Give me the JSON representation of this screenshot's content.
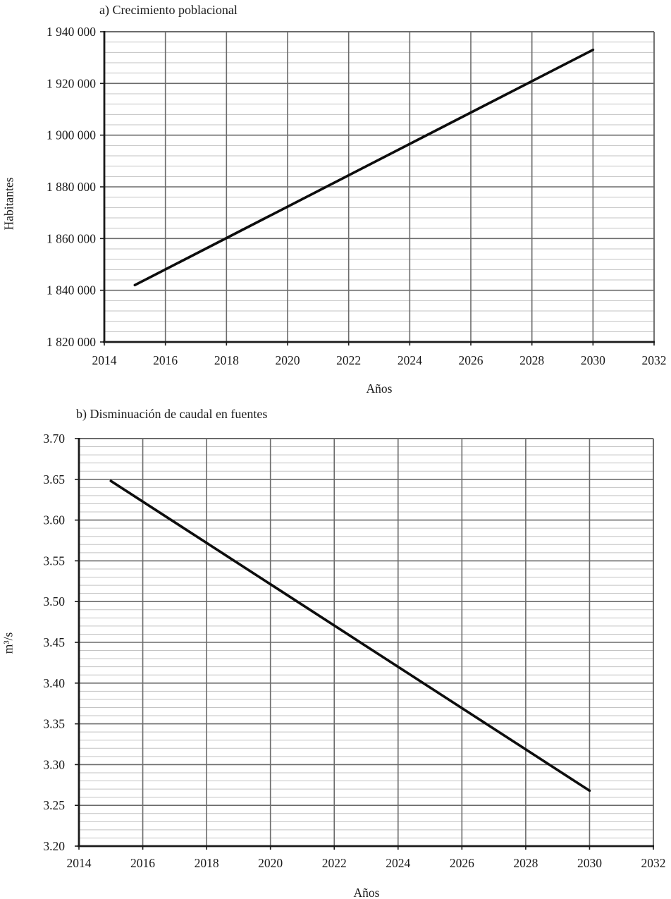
{
  "figure": {
    "background": "#ffffff",
    "text_color": "#1a1a1a"
  },
  "style": {
    "axis_color": "#1a1a1a",
    "major_grid_color": "#6b6b6b",
    "minor_grid_color": "#c3c3c3",
    "line_color": "#0d0d0d"
  },
  "chart_data": [
    {
      "type": "line",
      "panel_label": "a)",
      "title": "a) Crecimiento poblacional",
      "xlabel": "Años",
      "ylabel": "Habitantes",
      "xlim": [
        2014,
        2032
      ],
      "ylim": [
        1820000,
        1940000
      ],
      "x_major_step": 2,
      "y_major_step": 20000,
      "y_minor_step": 4000,
      "x_tick_labels": [
        "2014",
        "2016",
        "2018",
        "2020",
        "2022",
        "2024",
        "2026",
        "2028",
        "2030",
        "2032"
      ],
      "y_tick_labels": [
        "1 940 000",
        "1 920 000",
        "1 900 000",
        "1 880 000",
        "1 860 000",
        "1 840 000",
        "1 820 000"
      ],
      "grid": {
        "horizontal": "major+minor",
        "vertical": "major"
      },
      "legend": "none",
      "series": [
        {
          "name": "Crecimiento poblacional",
          "color": "#0d0d0d",
          "x": [
            2015,
            2030
          ],
          "y": [
            1842000,
            1933000
          ]
        }
      ]
    },
    {
      "type": "line",
      "panel_label": "b)",
      "title": "b) Disminuación de caudal en fuentes",
      "xlabel": "Años",
      "ylabel": "m³/s",
      "xlim": [
        2014,
        2032
      ],
      "ylim": [
        3.2,
        3.7
      ],
      "x_major_step": 2,
      "y_major_step": 0.05,
      "y_minor_step": 0.01,
      "x_tick_labels": [
        "2014",
        "2016",
        "2018",
        "2020",
        "2022",
        "2024",
        "2026",
        "2028",
        "2030",
        "2032"
      ],
      "y_tick_labels": [
        "3.70",
        "3.65",
        "3.60",
        "3.55",
        "3.50",
        "3.45",
        "3.40",
        "3.35",
        "3.30",
        "3.25",
        "3.20"
      ],
      "grid": {
        "horizontal": "major+minor",
        "vertical": "major"
      },
      "legend": "none",
      "series": [
        {
          "name": "Disminuación de caudal",
          "color": "#0d0d0d",
          "x": [
            2015,
            2030
          ],
          "y": [
            3.648,
            3.268
          ]
        }
      ]
    }
  ]
}
